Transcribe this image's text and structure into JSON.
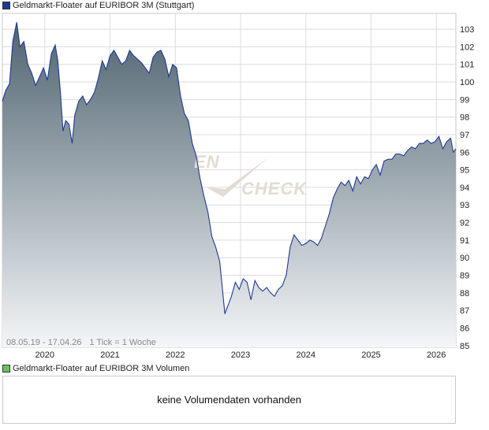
{
  "legend": {
    "price_label": "Geldmarkt-Floater auf EURIBOR 3M (Stuttgart)",
    "price_color": "#1f3a93",
    "volume_label": "Geldmarkt-Floater auf EURIBOR 3M Volumen",
    "volume_color": "#6fbf5f"
  },
  "footnote": {
    "range": "08.05.19 - 17.04.26",
    "tick": "1 Tick = 1 Woche"
  },
  "watermark": {
    "left_fragment": "EN",
    "right_fragment": "CHECK"
  },
  "volume_panel": {
    "message": "keine Volumendaten vorhanden"
  },
  "colors": {
    "line": "#1f3a93",
    "area_top": "#4f6370",
    "area_bottom": "#f4f6f8",
    "grid": "#dcdcdc",
    "frame": "#c8c8c8"
  },
  "chart_data": {
    "type": "area",
    "x_start": "2019-05-08",
    "x_end": "2026-04-17",
    "xlim": [
      2019.35,
      2026.3
    ],
    "x_ticks": [
      {
        "value": 2020.0,
        "label": "2020"
      },
      {
        "value": 2021.0,
        "label": "2021"
      },
      {
        "value": 2022.0,
        "label": "2022"
      },
      {
        "value": 2023.0,
        "label": "2023"
      },
      {
        "value": 2024.0,
        "label": "2024"
      },
      {
        "value": 2025.0,
        "label": "2025"
      },
      {
        "value": 2026.0,
        "label": "2026"
      }
    ],
    "ylim": [
      84.9,
      103.9
    ],
    "y_ticks": [
      85,
      86,
      87,
      88,
      89,
      90,
      91,
      92,
      93,
      94,
      95,
      96,
      97,
      98,
      99,
      100,
      101,
      102,
      103
    ],
    "grid": true,
    "x": [
      2019.35,
      2019.4,
      2019.46,
      2019.51,
      2019.57,
      2019.62,
      2019.68,
      2019.74,
      2019.8,
      2019.86,
      2019.92,
      2019.98,
      2020.04,
      2020.1,
      2020.16,
      2020.2,
      2020.24,
      2020.28,
      2020.32,
      2020.37,
      2020.42,
      2020.46,
      2020.52,
      2020.58,
      2020.64,
      2020.7,
      2020.76,
      2020.82,
      2020.88,
      2020.94,
      2021.0,
      2021.06,
      2021.12,
      2021.18,
      2021.24,
      2021.3,
      2021.36,
      2021.42,
      2021.48,
      2021.54,
      2021.6,
      2021.66,
      2021.72,
      2021.78,
      2021.84,
      2021.9,
      2021.96,
      2022.02,
      2022.08,
      2022.14,
      2022.2,
      2022.26,
      2022.32,
      2022.38,
      2022.44,
      2022.5,
      2022.56,
      2022.62,
      2022.68,
      2022.72,
      2022.76,
      2022.8,
      2022.86,
      2022.92,
      2022.98,
      2023.04,
      2023.1,
      2023.16,
      2023.22,
      2023.28,
      2023.34,
      2023.4,
      2023.46,
      2023.52,
      2023.58,
      2023.64,
      2023.7,
      2023.76,
      2023.82,
      2023.88,
      2023.94,
      2024.0,
      2024.06,
      2024.12,
      2024.18,
      2024.24,
      2024.3,
      2024.36,
      2024.42,
      2024.48,
      2024.54,
      2024.6,
      2024.66,
      2024.72,
      2024.78,
      2024.84,
      2024.9,
      2024.96,
      2025.02,
      2025.08,
      2025.14,
      2025.2,
      2025.26,
      2025.32,
      2025.38,
      2025.44,
      2025.5,
      2025.56,
      2025.62,
      2025.68,
      2025.74,
      2025.8,
      2025.86,
      2025.92,
      2025.98,
      2026.04,
      2026.1,
      2026.16,
      2026.22,
      2026.26,
      2026.3
    ],
    "y": [
      98.9,
      99.5,
      99.9,
      102.3,
      103.4,
      102.0,
      102.3,
      101.0,
      100.5,
      99.8,
      100.3,
      100.8,
      100.1,
      101.6,
      102.1,
      101.2,
      99.4,
      97.2,
      97.8,
      97.6,
      96.5,
      98.1,
      98.9,
      99.2,
      98.7,
      99.0,
      99.4,
      100.2,
      101.2,
      100.7,
      101.5,
      101.8,
      101.4,
      101.0,
      101.2,
      101.8,
      101.5,
      101.3,
      101.1,
      100.8,
      100.5,
      101.4,
      101.7,
      101.8,
      101.3,
      100.3,
      101.0,
      100.8,
      99.2,
      98.2,
      97.8,
      96.5,
      95.8,
      94.5,
      93.5,
      92.6,
      91.2,
      90.6,
      89.8,
      88.3,
      86.8,
      87.2,
      87.8,
      88.6,
      88.2,
      88.8,
      88.6,
      87.6,
      88.7,
      88.3,
      88.1,
      88.3,
      88.0,
      87.8,
      88.2,
      88.4,
      89.0,
      90.6,
      91.3,
      91.0,
      90.7,
      90.8,
      91.0,
      90.9,
      90.7,
      91.1,
      91.8,
      92.5,
      93.4,
      93.9,
      94.3,
      94.1,
      94.4,
      93.8,
      94.6,
      94.2,
      94.6,
      94.5,
      95.0,
      95.3,
      94.7,
      95.5,
      95.6,
      95.6,
      95.9,
      95.9,
      95.8,
      96.1,
      96.3,
      96.2,
      96.5,
      96.5,
      96.7,
      96.5,
      96.6,
      96.9,
      96.2,
      96.6,
      96.8,
      96.0,
      96.2
    ]
  }
}
